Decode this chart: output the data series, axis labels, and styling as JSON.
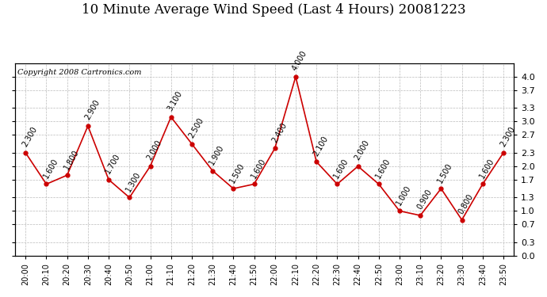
{
  "title": "10 Minute Average Wind Speed (Last 4 Hours) 20081223",
  "copyright": "Copyright 2008 Cartronics.com",
  "x_labels": [
    "20:00",
    "20:10",
    "20:20",
    "20:30",
    "20:40",
    "20:50",
    "21:00",
    "21:10",
    "21:20",
    "21:30",
    "21:40",
    "21:50",
    "22:00",
    "22:10",
    "22:20",
    "22:30",
    "22:40",
    "22:50",
    "23:00",
    "23:10",
    "23:20",
    "23:30",
    "23:40",
    "23:50"
  ],
  "y_values": [
    2.3,
    1.6,
    1.8,
    2.9,
    1.7,
    1.3,
    2.0,
    3.1,
    2.5,
    1.9,
    1.5,
    1.6,
    2.4,
    4.0,
    2.1,
    1.6,
    2.0,
    1.6,
    1.0,
    0.9,
    1.5,
    0.8,
    1.6,
    2.3
  ],
  "line_color": "#cc0000",
  "marker_color": "#cc0000",
  "bg_color": "#ffffff",
  "plot_bg_color": "#ffffff",
  "grid_color": "#bbbbbb",
  "ylim": [
    0.0,
    4.3
  ],
  "yticks_right": [
    0.0,
    0.3,
    0.7,
    1.0,
    1.3,
    1.7,
    2.0,
    2.3,
    2.7,
    3.0,
    3.3,
    3.7,
    4.0
  ],
  "title_fontsize": 12,
  "annotation_fontsize": 7,
  "annotation_rotation": 60,
  "copyright_fontsize": 7
}
